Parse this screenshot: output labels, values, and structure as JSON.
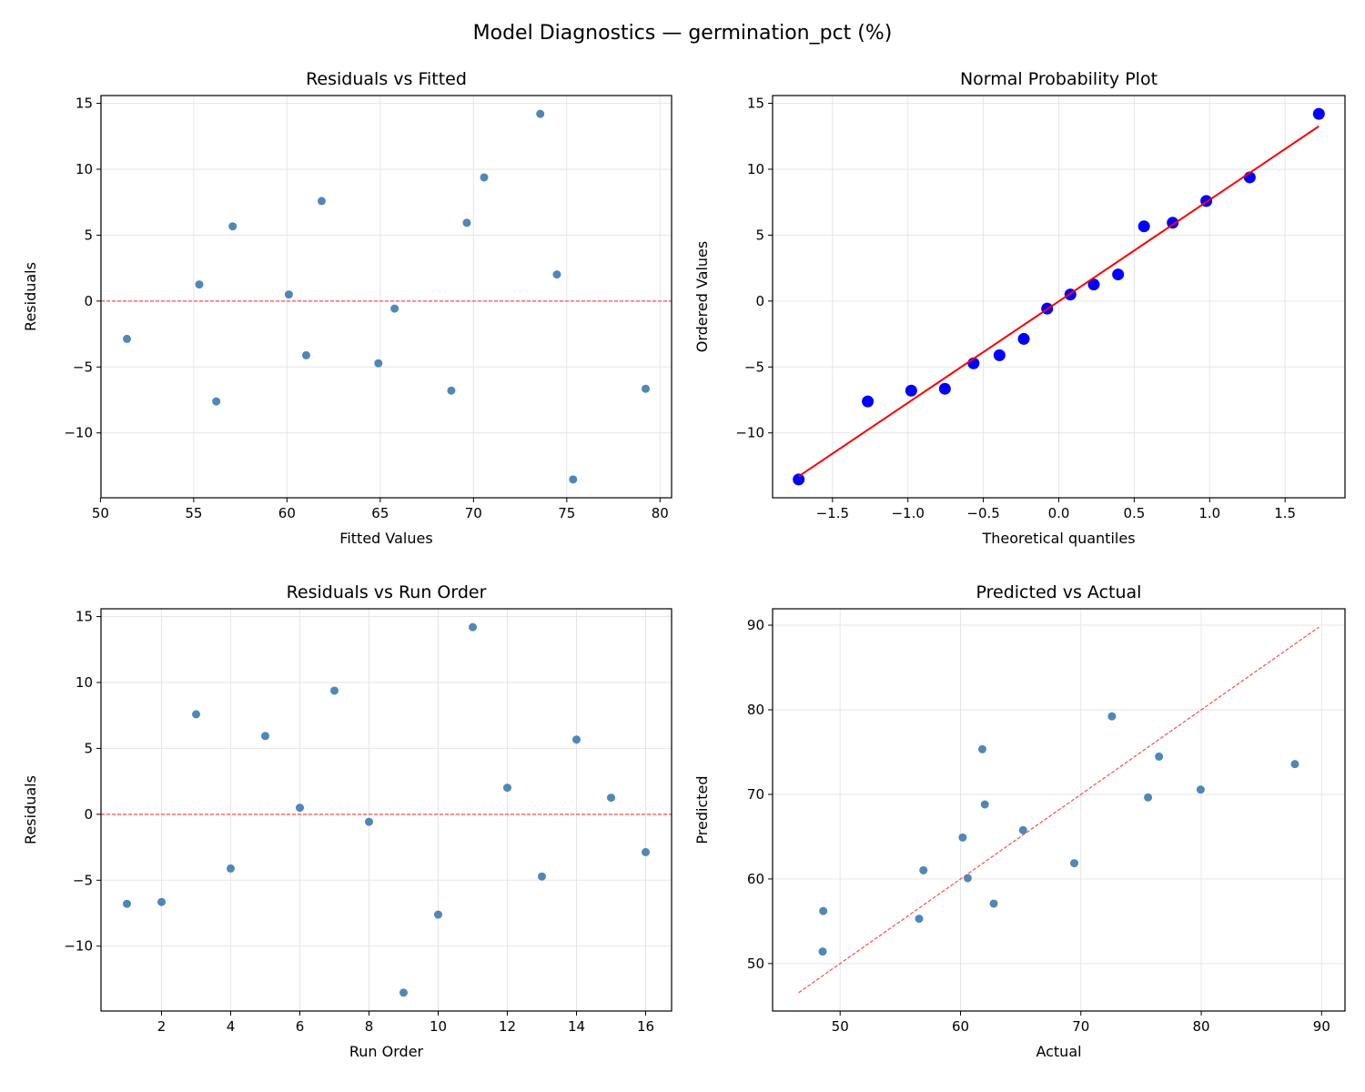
{
  "title": "Model Diagnostics — germination_pct (%)",
  "chart_data": [
    {
      "type": "scatter",
      "title": "Residuals vs Fitted",
      "xlabel": "Fitted Values",
      "ylabel": "Residuals",
      "xlim": [
        50.03,
        80.62
      ],
      "ylim": [
        -14.92,
        15.59
      ],
      "grid": true,
      "xticks": [
        50,
        55,
        60,
        65,
        70,
        75,
        80
      ],
      "xtick_labels": [
        "50",
        "55",
        "60",
        "65",
        "70",
        "75",
        "80"
      ],
      "yticks": [
        -10,
        -5,
        0,
        5,
        10,
        15
      ],
      "ytick_labels": [
        "−10",
        "−5",
        "0",
        "5",
        "10",
        "15"
      ],
      "marker_color": "#4682b4",
      "x": [
        68.81,
        79.23,
        61.86,
        61.03,
        69.64,
        60.1,
        70.57,
        65.77,
        75.34,
        56.21,
        73.58,
        74.47,
        64.9,
        57.09,
        55.3,
        51.42
      ],
      "y": [
        -6.79,
        -6.65,
        7.59,
        -4.11,
        5.94,
        0.5,
        9.38,
        -0.57,
        -13.53,
        -7.61,
        14.2,
        2.02,
        -4.72,
        5.67,
        1.26,
        -2.87
      ],
      "reference_line": {
        "kind": "horizontal",
        "y": 0,
        "style": "dashed",
        "color": "#ff4d4d"
      }
    },
    {
      "type": "scatter",
      "title": "Normal Probability Plot",
      "xlabel": "Theoretical quantiles",
      "ylabel": "Ordered Values",
      "xlim": [
        -1.897,
        1.897
      ],
      "ylim": [
        -14.92,
        15.59
      ],
      "grid": true,
      "xticks": [
        -1.5,
        -1.0,
        -0.5,
        0.0,
        0.5,
        1.0,
        1.5
      ],
      "xtick_labels": [
        "−1.5",
        "−1.0",
        "−0.5",
        "0.0",
        "0.5",
        "1.0",
        "1.5"
      ],
      "yticks": [
        -10,
        -5,
        0,
        5,
        10,
        15
      ],
      "ytick_labels": [
        "−10",
        "−5",
        "0",
        "5",
        "10",
        "15"
      ],
      "marker_color": "#0000ff",
      "x": [
        -1.724,
        -1.266,
        -0.978,
        -0.755,
        -0.565,
        -0.393,
        -0.232,
        -0.077,
        0.077,
        0.232,
        0.393,
        0.565,
        0.755,
        0.978,
        1.266,
        1.724
      ],
      "y": [
        -13.53,
        -7.61,
        -6.79,
        -6.65,
        -4.72,
        -4.11,
        -2.87,
        -0.57,
        0.5,
        1.26,
        2.02,
        5.67,
        5.94,
        7.59,
        9.38,
        14.2
      ],
      "reference_line": {
        "kind": "least-squares fit",
        "style": "solid",
        "color": "#ff0000"
      }
    },
    {
      "type": "scatter",
      "title": "Residuals vs Run Order",
      "xlabel": "Run Order",
      "ylabel": "Residuals",
      "xlim": [
        0.25,
        16.75
      ],
      "ylim": [
        -14.92,
        15.59
      ],
      "grid": true,
      "xticks": [
        2,
        4,
        6,
        8,
        10,
        12,
        14,
        16
      ],
      "xtick_labels": [
        "2",
        "4",
        "6",
        "8",
        "10",
        "12",
        "14",
        "16"
      ],
      "yticks": [
        -10,
        -5,
        0,
        5,
        10,
        15
      ],
      "ytick_labels": [
        "−10",
        "−5",
        "0",
        "5",
        "10",
        "15"
      ],
      "marker_color": "#4682b4",
      "x": [
        1,
        2,
        3,
        4,
        5,
        6,
        7,
        8,
        9,
        10,
        11,
        12,
        13,
        14,
        15,
        16
      ],
      "y": [
        -6.79,
        -6.65,
        7.59,
        -4.11,
        5.94,
        0.5,
        9.38,
        -0.57,
        -13.53,
        -7.61,
        14.2,
        2.02,
        -4.72,
        5.67,
        1.26,
        -2.87
      ],
      "reference_line": {
        "kind": "horizontal",
        "y": 0,
        "style": "dashed",
        "color": "#ff4d4d"
      }
    },
    {
      "type": "scatter",
      "title": "Predicted vs Actual",
      "xlabel": "Actual",
      "ylabel": "Predicted",
      "xlim": [
        44.39,
        91.94
      ],
      "ylim": [
        44.39,
        91.94
      ],
      "grid": true,
      "xticks": [
        50,
        60,
        70,
        80,
        90
      ],
      "xtick_labels": [
        "50",
        "60",
        "70",
        "80",
        "90"
      ],
      "yticks": [
        50,
        60,
        70,
        80,
        90
      ],
      "ytick_labels": [
        "50",
        "60",
        "70",
        "80",
        "90"
      ],
      "marker_color": "#4682b4",
      "x": [
        62.02,
        72.58,
        69.45,
        56.92,
        75.58,
        60.6,
        79.95,
        65.2,
        61.81,
        48.6,
        87.78,
        76.49,
        60.18,
        62.76,
        56.56,
        48.55
      ],
      "y": [
        68.81,
        79.23,
        61.86,
        61.03,
        69.64,
        60.1,
        70.57,
        65.77,
        75.34,
        56.21,
        73.58,
        74.47,
        64.9,
        57.09,
        55.3,
        51.42
      ],
      "reference_line": {
        "kind": "identity",
        "from": 46.55,
        "to": 89.78,
        "style": "dashed",
        "color": "#ff4d4d"
      }
    }
  ]
}
